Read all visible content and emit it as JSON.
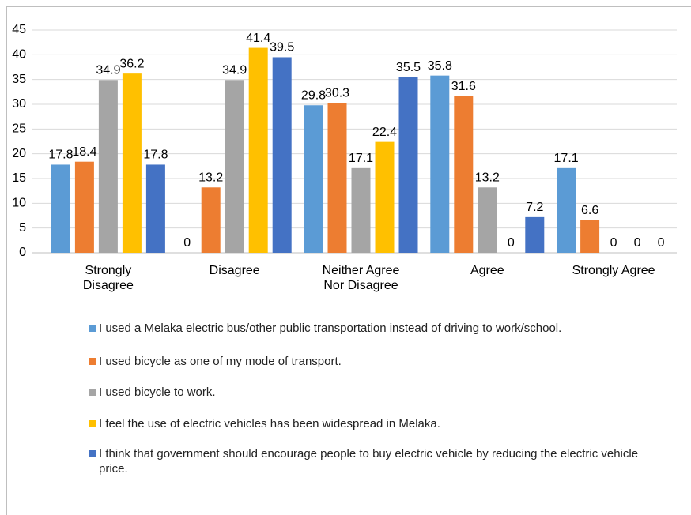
{
  "chart_data": {
    "type": "bar",
    "categories": [
      "Strongly Disagree",
      "Disagree",
      "Neither Agree Nor Disagree",
      "Agree",
      "Strongly Agree"
    ],
    "series": [
      {
        "name": "I used a Melaka electric bus/other public transportation instead of driving to work/school.",
        "color": "#5b9bd5",
        "values": [
          17.8,
          0,
          29.8,
          35.8,
          17.1
        ]
      },
      {
        "name": "I used bicycle as one of my mode of transport.",
        "color": "#ed7d31",
        "values": [
          18.4,
          13.2,
          30.3,
          31.6,
          6.6
        ]
      },
      {
        "name": "I used bicycle to work.",
        "color": "#a5a5a5",
        "values": [
          34.9,
          34.9,
          17.1,
          13.2,
          0
        ]
      },
      {
        "name": "I feel the use of electric vehicles has been widespread in Melaka.",
        "color": "#ffc000",
        "values": [
          36.2,
          41.4,
          22.4,
          0,
          0
        ]
      },
      {
        "name": "I think that government should encourage people to buy electric vehicle by reducing the electric vehicle price.",
        "color": "#4472c4",
        "values": [
          17.8,
          39.5,
          35.5,
          7.2,
          0
        ]
      }
    ],
    "ylim": [
      0,
      45
    ],
    "yticks": [
      0,
      5,
      10,
      15,
      20,
      25,
      30,
      35,
      40,
      45
    ],
    "grid": true
  }
}
